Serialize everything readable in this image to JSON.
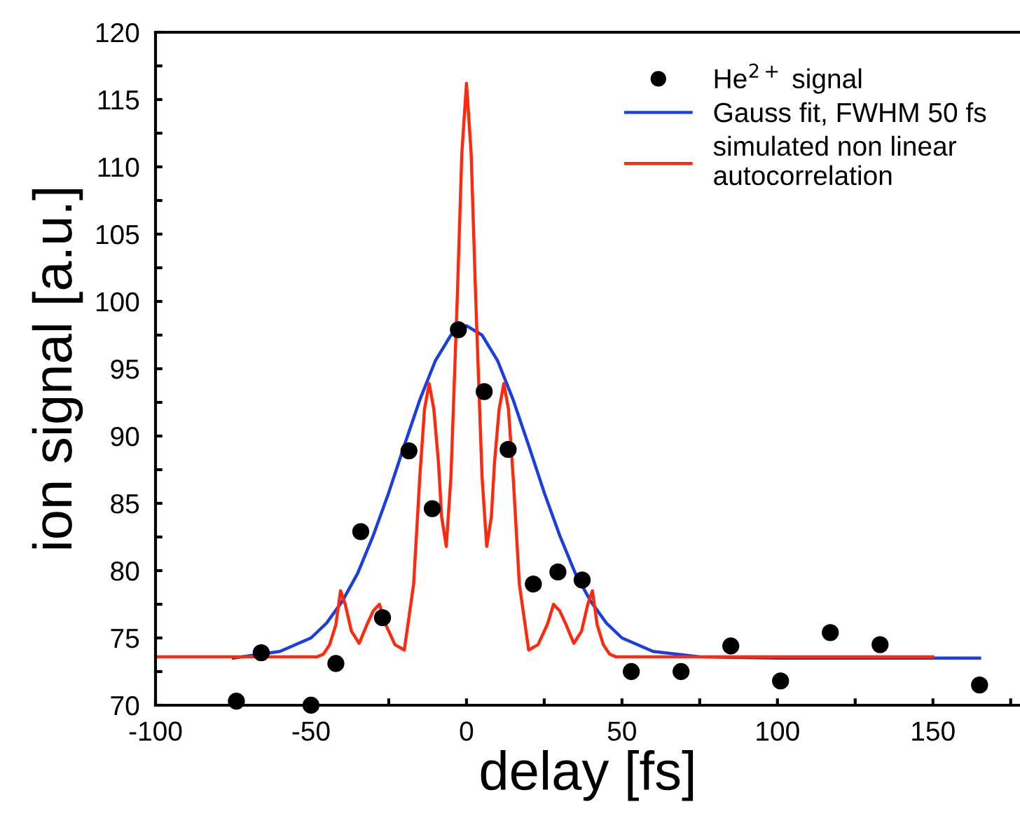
{
  "chart_data": {
    "type": "scatter",
    "xlabel": "delay [fs]",
    "ylabel": "ion signal [a.u.]",
    "xlim": [
      -100,
      178
    ],
    "ylim": [
      70,
      120
    ],
    "xticks": [
      -100,
      {
        "value": -75,
        "label": null
      },
      -50,
      {
        "value": -25,
        "label": null
      },
      0,
      {
        "value": 25,
        "label": null
      },
      50,
      {
        "value": 75,
        "label": null
      },
      100,
      {
        "value": 125,
        "label": null
      },
      150,
      {
        "value": 175,
        "label": null
      }
    ],
    "yticks": [
      70,
      {
        "value": 72.5,
        "label": null
      },
      75,
      {
        "value": 77.5,
        "label": null
      },
      80,
      {
        "value": 82.5,
        "label": null
      },
      85,
      {
        "value": 87.5,
        "label": null
      },
      90,
      {
        "value": 92.5,
        "label": null
      },
      95,
      {
        "value": 97.5,
        "label": null
      },
      100,
      {
        "value": 102.5,
        "label": null
      },
      105,
      {
        "value": 107.5,
        "label": null
      },
      110,
      {
        "value": 112.5,
        "label": null
      },
      115,
      {
        "value": 117.5,
        "label": null
      },
      120
    ],
    "grid": false,
    "legend": "top right",
    "series": [
      {
        "name": "He$^{2+}$ signal",
        "marker": "circle",
        "color": "#000000",
        "x": [
          -74,
          -66,
          -50,
          -42,
          -34,
          -27,
          -18.5,
          -11,
          -2.6,
          5.7,
          13.4,
          21.5,
          29.4,
          37.2,
          53,
          69,
          85,
          101,
          117,
          133,
          165
        ],
        "values": [
          70.3,
          73.9,
          70.0,
          73.1,
          82.9,
          76.5,
          88.9,
          84.6,
          97.9,
          93.3,
          89.0,
          79.0,
          79.9,
          79.3,
          72.5,
          72.5,
          74.4,
          71.8,
          75.4,
          74.5,
          71.5
        ]
      },
      {
        "name": "Gauss fit, FWHM 50 fs",
        "type": "line",
        "marker": "none",
        "line_style": "solid",
        "color": "#1a3fe0",
        "x": [
          -75,
          -60,
          -50,
          -45,
          -40,
          -35,
          -30,
          -25,
          -20,
          -15,
          -10,
          -5,
          0,
          5,
          10,
          15,
          20,
          25,
          30,
          35,
          40,
          45,
          50,
          60,
          75,
          100,
          165
        ],
        "values": [
          73.5,
          74.0,
          75.0,
          76.1,
          77.7,
          79.8,
          82.6,
          85.8,
          89.3,
          92.7,
          95.6,
          97.5,
          98.2,
          97.5,
          95.6,
          92.7,
          89.3,
          85.8,
          82.6,
          79.8,
          77.7,
          76.1,
          75.0,
          74.0,
          73.6,
          73.5,
          73.5
        ]
      },
      {
        "name": "simulated non linear\nautocorrelation",
        "type": "line",
        "marker": "none",
        "line_style": "solid",
        "color": "#ff2a0e",
        "x": [
          -100,
          -48,
          -46,
          -44,
          -42,
          -40.5,
          -39,
          -37,
          -34.5,
          -32,
          -30,
          -28,
          -26,
          -23,
          -20,
          -17,
          -15,
          -13.5,
          -12,
          -10.5,
          -9,
          -8,
          -6.5,
          -5,
          -3,
          -1.5,
          0,
          1.5,
          3,
          5,
          6.5,
          8,
          9,
          10.5,
          12,
          13.5,
          15,
          17,
          20,
          23,
          26,
          28,
          30,
          32,
          34.5,
          37,
          39,
          40.5,
          42,
          44,
          46,
          48,
          150
        ],
        "values": [
          73.6,
          73.6,
          73.8,
          74.5,
          76.0,
          78.5,
          77.5,
          75.5,
          74.6,
          76.0,
          77.0,
          77.5,
          76.0,
          74.5,
          74.1,
          79.0,
          87.0,
          92.0,
          93.9,
          92.0,
          88.0,
          84.0,
          81.8,
          87.0,
          100.0,
          111.0,
          116.2,
          111.0,
          100.0,
          87.0,
          81.8,
          84.0,
          88.0,
          92.0,
          93.9,
          92.0,
          87.0,
          79.0,
          74.1,
          74.5,
          76.0,
          77.5,
          77.0,
          76.0,
          74.6,
          75.5,
          77.5,
          78.5,
          76.0,
          74.5,
          73.8,
          73.6,
          73.6
        ]
      }
    ]
  }
}
